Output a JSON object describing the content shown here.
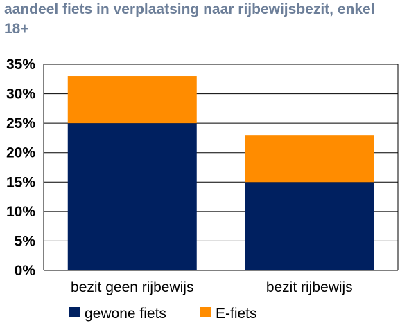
{
  "chart_data": {
    "type": "bar",
    "stacked": true,
    "title": "aandeel fiets in verplaatsing naar rijbewijsbezit, enkel 18+",
    "categories": [
      "bezit geen rijbewijs",
      "bezit rijbewijs"
    ],
    "series": [
      {
        "name": "gewone fiets",
        "values": [
          25,
          15
        ],
        "color": "#002060"
      },
      {
        "name": "E-fiets",
        "values": [
          8,
          8
        ],
        "color": "#ff8c00"
      }
    ],
    "ylim": [
      0,
      35
    ],
    "yticks": [
      "0%",
      "5%",
      "10%",
      "15%",
      "20%",
      "25%",
      "30%",
      "35%"
    ],
    "ytick_values": [
      0,
      5,
      10,
      15,
      20,
      25,
      30,
      35
    ],
    "grid": true,
    "legend": "bottom",
    "colors": {
      "grid": "#000000",
      "title": "#6d7f99"
    }
  }
}
